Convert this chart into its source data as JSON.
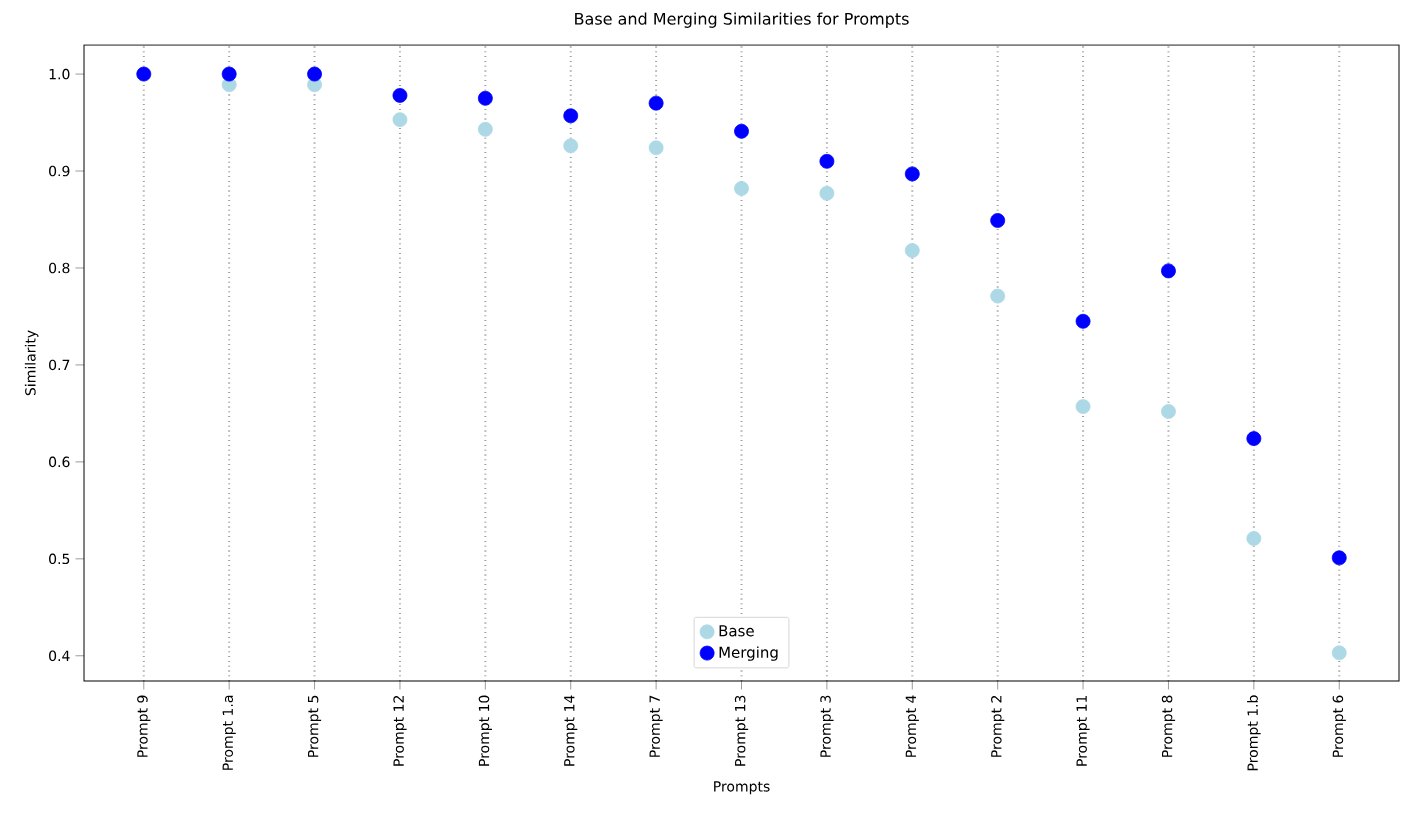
{
  "chart_data": {
    "type": "scatter",
    "title": "Base and Merging Similarities for Prompts",
    "xlabel": "Prompts",
    "ylabel": "Similarity",
    "categories": [
      "Prompt 9",
      "Prompt 1.a",
      "Prompt 5",
      "Prompt 12",
      "Prompt 10",
      "Prompt 14",
      "Prompt 7",
      "Prompt 13",
      "Prompt 3",
      "Prompt 4",
      "Prompt 2",
      "Prompt 11",
      "Prompt 8",
      "Prompt 1.b",
      "Prompt 6"
    ],
    "series": [
      {
        "name": "Base",
        "color": "#add8e6",
        "values": [
          null,
          0.989,
          0.989,
          0.953,
          0.943,
          0.926,
          0.924,
          0.882,
          0.877,
          0.818,
          0.771,
          0.657,
          0.652,
          0.521,
          0.403
        ]
      },
      {
        "name": "Merging",
        "color": "#0000ff",
        "values": [
          1.0,
          1.0,
          1.0,
          0.978,
          0.975,
          0.957,
          0.97,
          0.941,
          0.91,
          0.897,
          0.849,
          0.745,
          0.797,
          0.624,
          0.501
        ]
      }
    ],
    "ylim": [
      0.374,
      1.03
    ],
    "yticks": [
      0.4,
      0.5,
      0.6,
      0.7,
      0.8,
      0.9,
      {
        "value": 1,
        "label": "1.0"
      }
    ],
    "grid": "x",
    "legend": "bottom",
    "marker": "circle"
  }
}
